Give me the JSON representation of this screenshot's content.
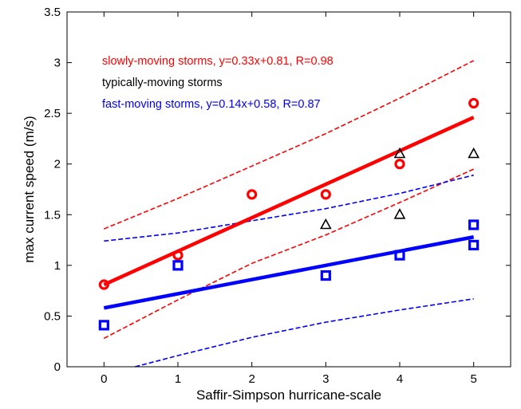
{
  "chart_data": {
    "type": "scatter",
    "xlabel": "Saffir-Simpson hurricane-scale",
    "ylabel": "max current speed (m/s)",
    "xlim": [
      -0.5,
      5.5
    ],
    "ylim": [
      0,
      3.5
    ],
    "xticks": [
      "0",
      "1",
      "2",
      "3",
      "4",
      "5"
    ],
    "yticks": [
      "0",
      "0.5",
      "1",
      "1.5",
      "2",
      "2.5",
      "3",
      "3.5"
    ],
    "grid": false,
    "legend_position": "top-left",
    "legend": [
      {
        "text": "slowly-moving storms, y=0.33x+0.81, R=0.98",
        "color": "#ff0000"
      },
      {
        "text": "typically-moving storms",
        "color": "#000000"
      },
      {
        "text": "fast-moving storms, y=0.14x+0.58, R=0.87",
        "color": "#0000ff"
      }
    ],
    "series": [
      {
        "marker": "circle",
        "color": "#ff0000",
        "x": [
          0,
          1,
          2,
          3,
          4,
          5
        ],
        "y": [
          0.81,
          1.1,
          1.7,
          1.7,
          2.0,
          2.6
        ]
      },
      {
        "marker": "triangle",
        "color": "#000000",
        "x": [
          3,
          4,
          4,
          5
        ],
        "y": [
          1.4,
          1.5,
          2.1,
          2.1
        ]
      },
      {
        "marker": "square",
        "color": "#0000ff",
        "x": [
          0,
          1,
          3,
          4,
          5,
          5
        ],
        "y": [
          0.41,
          1.0,
          0.9,
          1.1,
          1.4,
          1.2
        ]
      }
    ],
    "fit_lines": [
      {
        "color": "#ff0000",
        "slope": 0.33,
        "intercept": 0.81,
        "x_range": [
          0,
          5
        ]
      },
      {
        "color": "#0000ff",
        "slope": 0.14,
        "intercept": 0.58,
        "x_range": [
          0,
          5
        ]
      }
    ],
    "confidence_bands": [
      {
        "color": "#ff0000",
        "upper": {
          "x": [
            0,
            1,
            2,
            3,
            4,
            5
          ],
          "y": [
            1.36,
            1.66,
            1.98,
            2.3,
            2.65,
            3.02
          ]
        },
        "lower": {
          "x": [
            0,
            1,
            2,
            3,
            4,
            5
          ],
          "y": [
            0.28,
            0.66,
            1.02,
            1.3,
            1.62,
            1.95
          ]
        }
      },
      {
        "color": "#0000ff",
        "upper": {
          "x": [
            0,
            1,
            2,
            3,
            4,
            5
          ],
          "y": [
            1.24,
            1.32,
            1.44,
            1.56,
            1.71,
            1.89
          ]
        },
        "lower": {
          "x": [
            0.42,
            1,
            2,
            3,
            4,
            5
          ],
          "y": [
            0.0,
            0.11,
            0.29,
            0.44,
            0.56,
            0.67
          ]
        }
      }
    ]
  }
}
